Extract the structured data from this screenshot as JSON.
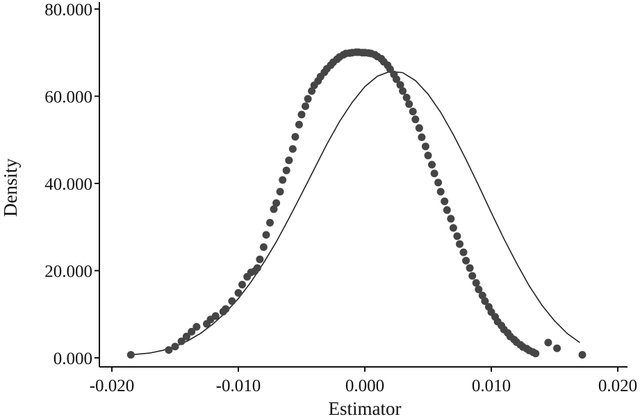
{
  "chart_data": {
    "type": "scatter",
    "title": "",
    "xlabel": "Estimator",
    "ylabel": "Density",
    "xlim": [
      -0.02,
      0.02
    ],
    "ylim": [
      0,
      80
    ],
    "x_ticks": [
      -0.02,
      -0.01,
      0.0,
      0.01,
      0.02
    ],
    "x_tick_labels": [
      "-0.020",
      "-0.010",
      "0.000",
      "0.010",
      "0.020"
    ],
    "y_ticks": [
      0,
      20,
      40,
      60,
      80
    ],
    "y_tick_labels": [
      "0.000",
      "20.000",
      "40.000",
      "60.000",
      "80.000"
    ],
    "grid": false,
    "legend": "none",
    "colors": {
      "points": "#454545",
      "curve": "#222222",
      "axis": "#111111"
    },
    "series": [
      {
        "kind": "points",
        "x": [
          -0.0185,
          -0.0155,
          -0.015,
          -0.0145,
          -0.0141,
          -0.0137,
          -0.0133,
          -0.0125,
          -0.0122,
          -0.0118,
          -0.0112,
          -0.011,
          -0.0105,
          -0.01,
          -0.0097,
          -0.0093,
          -0.009,
          -0.0087,
          -0.0085,
          -0.0083,
          -0.008,
          -0.0078,
          -0.0075,
          -0.0072,
          -0.007,
          -0.0067,
          -0.0065,
          -0.0062,
          -0.006,
          -0.0057,
          -0.0055,
          -0.0052,
          -0.005,
          -0.0047,
          -0.0045,
          -0.0042,
          -0.004,
          -0.0037,
          -0.0035,
          -0.0032,
          -0.003,
          -0.0027,
          -0.0025,
          -0.0022,
          -0.002,
          -0.0017,
          -0.0015,
          -0.0012,
          -0.001,
          -0.0007,
          -0.0005,
          -0.0002,
          0.0,
          0.0003,
          0.0005,
          0.0008,
          0.001,
          0.0013,
          0.0015,
          0.0018,
          0.002,
          0.0023,
          0.0025,
          0.0028,
          0.003,
          0.0033,
          0.0035,
          0.0038,
          0.004,
          0.0043,
          0.0045,
          0.0048,
          0.005,
          0.0053,
          0.0055,
          0.0058,
          0.006,
          0.0063,
          0.0065,
          0.0068,
          0.007,
          0.0073,
          0.0075,
          0.0078,
          0.008,
          0.0083,
          0.0085,
          0.0088,
          0.009,
          0.0093,
          0.0095,
          0.0098,
          0.01,
          0.0103,
          0.0105,
          0.0108,
          0.011,
          0.0113,
          0.0115,
          0.0118,
          0.012,
          0.0123,
          0.0125,
          0.0128,
          0.013,
          0.0133,
          0.0135,
          0.0145,
          0.0152,
          0.0172
        ],
        "y": [
          0.7,
          1.8,
          2.6,
          3.8,
          4.9,
          6.0,
          7.1,
          7.8,
          8.8,
          9.6,
          10.6,
          11.2,
          13.0,
          14.9,
          16.8,
          18.6,
          19.6,
          19.9,
          20.6,
          22.6,
          25.4,
          28.2,
          31.0,
          34.1,
          35.5,
          38.1,
          40.8,
          43.0,
          45.3,
          47.9,
          50.7,
          53.5,
          55.8,
          57.7,
          59.4,
          61.2,
          62.5,
          63.5,
          64.5,
          65.5,
          66.3,
          67.1,
          67.8,
          68.5,
          69.0,
          69.5,
          69.8,
          69.9,
          70.0,
          70.1,
          70.1,
          70.0,
          70.0,
          69.9,
          69.8,
          69.5,
          69.1,
          68.6,
          67.9,
          67.1,
          66.2,
          65.0,
          63.9,
          62.6,
          61.2,
          59.7,
          58.2,
          56.5,
          54.7,
          52.7,
          50.6,
          48.5,
          46.4,
          44.3,
          42.3,
          40.2,
          38.1,
          35.9,
          33.9,
          31.9,
          29.8,
          27.9,
          26.1,
          24.2,
          22.3,
          20.6,
          18.8,
          17.2,
          15.7,
          14.3,
          13.0,
          11.7,
          10.5,
          9.4,
          8.3,
          7.4,
          6.5,
          5.7,
          4.9,
          4.2,
          3.6,
          3.0,
          2.5,
          2.1,
          1.7,
          1.3,
          1.0,
          3.5,
          2.2,
          0.7
        ]
      },
      {
        "kind": "curve",
        "x": [
          -0.0185,
          -0.017,
          -0.016,
          -0.015,
          -0.014,
          -0.013,
          -0.012,
          -0.011,
          -0.01,
          -0.009,
          -0.008,
          -0.007,
          -0.006,
          -0.005,
          -0.004,
          -0.003,
          -0.002,
          -0.001,
          0.0,
          0.001,
          0.002,
          0.003,
          0.004,
          0.005,
          0.006,
          0.007,
          0.008,
          0.009,
          0.01,
          0.011,
          0.012,
          0.013,
          0.014,
          0.015,
          0.016,
          0.017
        ],
        "y": [
          0.7,
          1.1,
          1.7,
          2.6,
          3.9,
          5.6,
          7.8,
          10.4,
          13.6,
          17.4,
          21.8,
          26.6,
          32.0,
          37.6,
          43.3,
          49.0,
          54.2,
          58.6,
          62.2,
          64.6,
          65.7,
          65.4,
          63.6,
          60.5,
          56.3,
          51.2,
          45.5,
          39.5,
          33.3,
          27.3,
          21.7,
          16.5,
          12.1,
          8.5,
          5.6,
          3.5
        ]
      }
    ]
  }
}
